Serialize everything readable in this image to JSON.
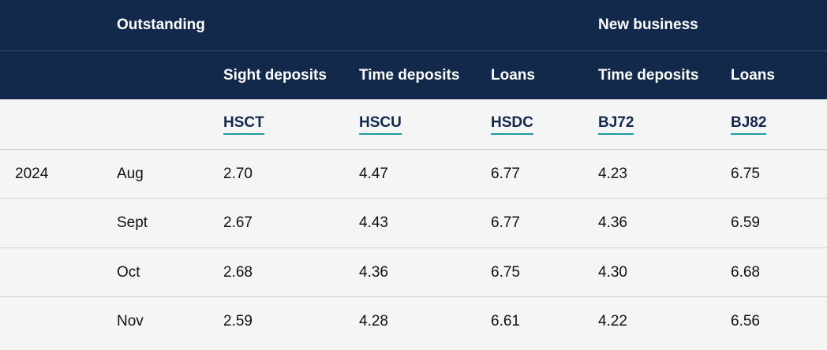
{
  "header": {
    "groups": [
      "Outstanding",
      "New business"
    ],
    "columns": [
      "Sight deposits",
      "Time deposits",
      "Loans",
      "Time deposits",
      "Loans"
    ]
  },
  "codes": [
    "HSCT",
    "HSCU",
    "HSDC",
    "BJ72",
    "BJ82"
  ],
  "rows": [
    {
      "year": "2024",
      "month": "Aug",
      "values": [
        "2.70",
        "4.47",
        "6.77",
        "4.23",
        "6.75"
      ]
    },
    {
      "month": "Sept",
      "values": [
        "2.67",
        "4.43",
        "6.77",
        "4.36",
        "6.59"
      ]
    },
    {
      "month": "Oct",
      "values": [
        "2.68",
        "4.36",
        "6.75",
        "4.30",
        "6.68"
      ]
    },
    {
      "month": "Nov",
      "values": [
        "2.59",
        "4.28",
        "6.61",
        "4.22",
        "6.56"
      ]
    }
  ]
}
